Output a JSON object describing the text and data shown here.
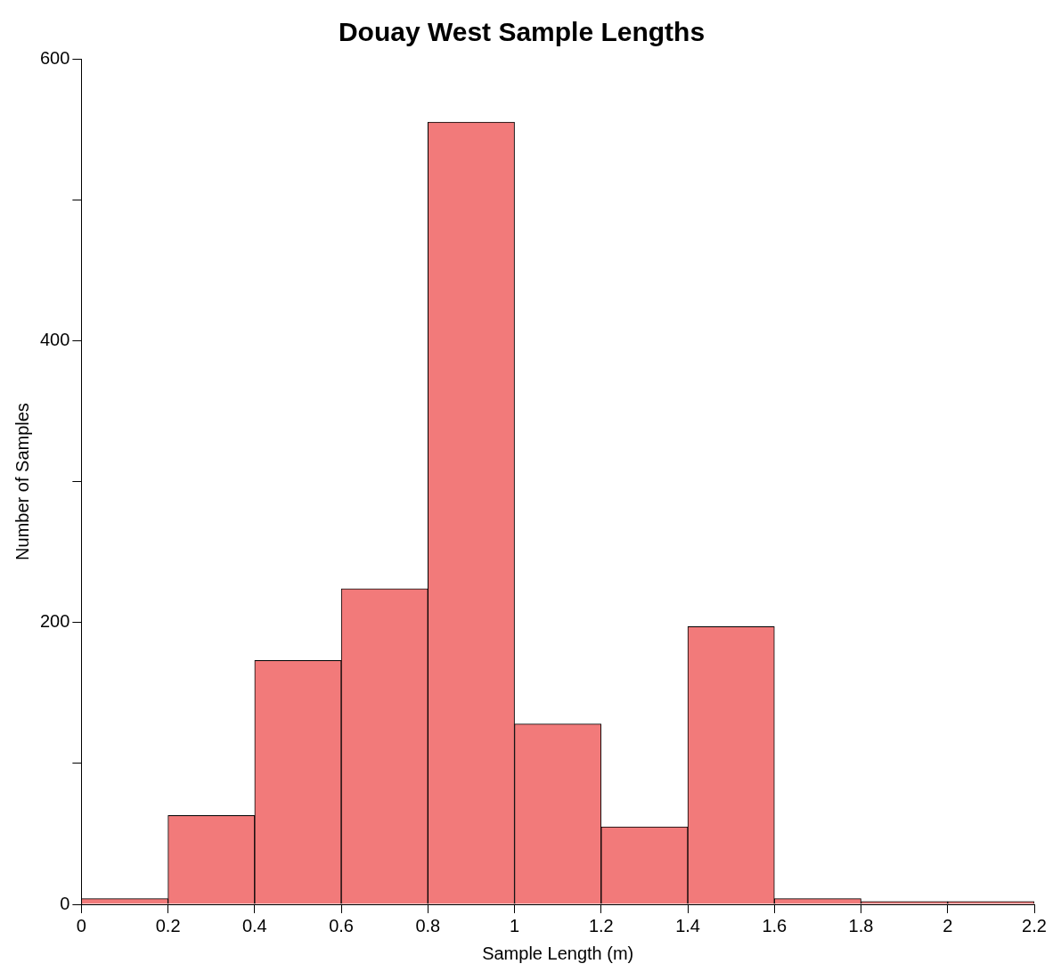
{
  "chart_data": {
    "type": "histogram",
    "title": "Douay West Sample Lengths",
    "xlabel": "Sample Length (m)",
    "ylabel": "Number of Samples",
    "bins": [
      0,
      0.2,
      0.4,
      0.6,
      0.8,
      1,
      1.2,
      1.4,
      1.6,
      1.8,
      2,
      2.2
    ],
    "values": [
      4,
      63,
      173,
      224,
      555,
      128,
      55,
      197,
      4,
      2,
      2
    ],
    "color": "#f27a7a",
    "xlim": [
      0,
      2.2
    ],
    "xticks": [
      0,
      0.2,
      0.4,
      0.6,
      0.8,
      1,
      1.2,
      1.4,
      1.6,
      1.8,
      2,
      2.2
    ],
    "ylim": [
      0,
      600
    ],
    "yticks": [
      0,
      {
        "value": 100,
        "label": null
      },
      200,
      {
        "value": 300,
        "label": null
      },
      400,
      {
        "value": 500,
        "label": null
      },
      600
    ],
    "grid": false,
    "legend": false
  }
}
